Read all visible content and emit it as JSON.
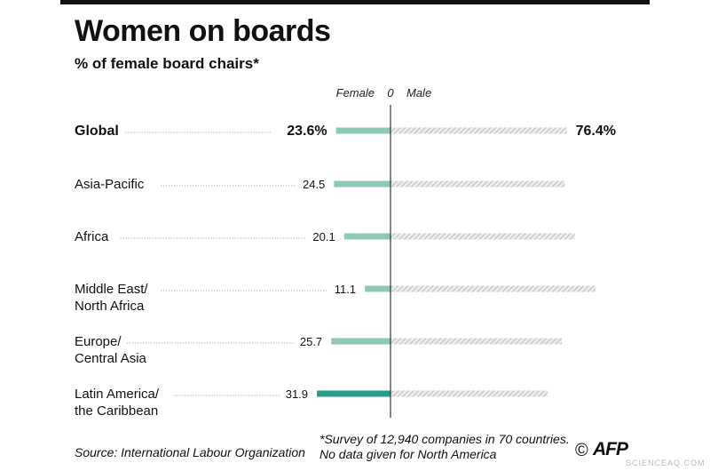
{
  "title": "Women on boards",
  "subtitle": "% of female board chairs*",
  "source": "Source: International Labour Organization",
  "footnote_line1": "*Survey of 12,940 companies in 70 countries.",
  "footnote_line2": "No data given for North America",
  "copyright_symbol": "©",
  "logo_text": "AFP",
  "watermark": "SCIENCEAQ.COM",
  "chart_data": {
    "type": "bar",
    "axis_labels": {
      "left": "Female",
      "center": "0",
      "right": "Male"
    },
    "categories": [
      [
        "Global"
      ],
      [
        "Asia-Pacific"
      ],
      [
        "Africa"
      ],
      [
        "Middle East/",
        "North Africa"
      ],
      [
        "Europe/",
        "Central Asia"
      ],
      [
        "Latin America/",
        "the Caribbean"
      ]
    ],
    "female_labels": [
      "23.6%",
      "24.5",
      "20.1",
      "11.1",
      "25.7",
      "31.9"
    ],
    "male_labels": [
      "76.4%",
      "",
      "",
      "",
      "",
      ""
    ],
    "series": [
      {
        "name": "Female",
        "values": [
          23.6,
          24.5,
          20.1,
          11.1,
          25.7,
          31.9
        ]
      },
      {
        "name": "Male",
        "values": [
          76.4,
          75.5,
          79.9,
          88.9,
          74.3,
          68.1
        ]
      }
    ],
    "colors": {
      "female": "#8ec9b8",
      "female_highlight": "#2a9d8a",
      "male": "#d8d8d8",
      "axis": "#333333",
      "leader": "#999999"
    }
  }
}
